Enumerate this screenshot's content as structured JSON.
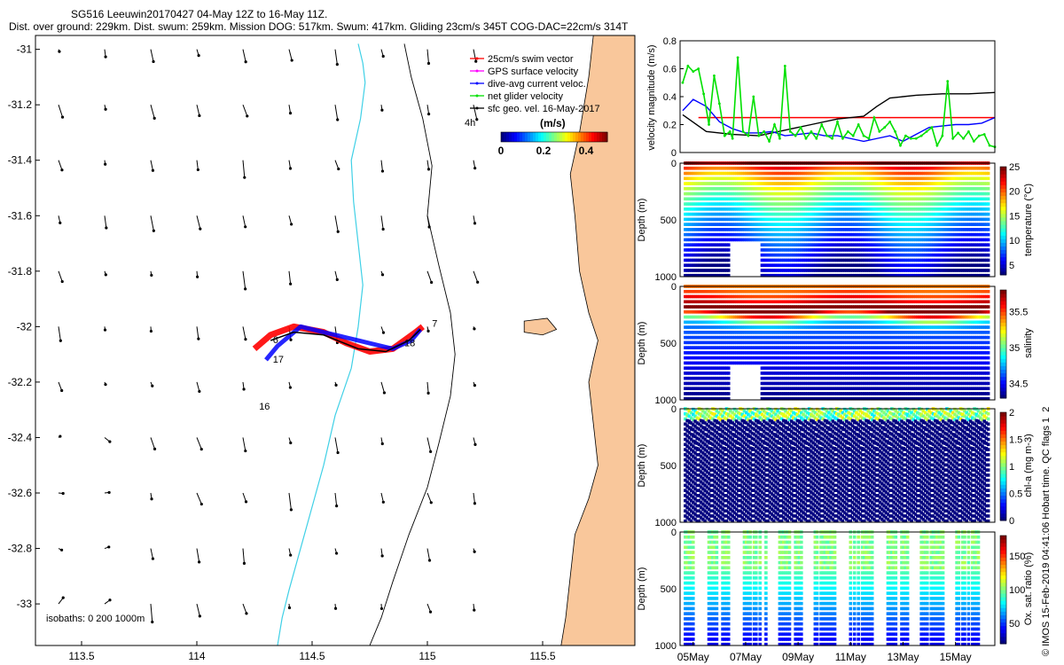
{
  "header": {
    "title_line1": "SG516 Leeuwin20170427 04-May 12Z to 16-May 11Z.",
    "title_line2": "Dist. over ground: 229km. Dist. swum: 259km. Mission DOG: 517km. Swum: 417km. Gliding 23cm/s 345T COG-DAC=22cm/s 314T"
  },
  "credit": "© IMOS 15-Feb-2019 04:41:06 Hobart time. QC flags 1  2",
  "colors": {
    "land": "#f9c79b",
    "isobath_200": "#3fd0e6",
    "isobath_1000": "#000000",
    "swim_vector": "#ff0000",
    "gps_velocity": "#ff00ff",
    "dive_avg": "#0000ff",
    "net_velocity": "#00e000",
    "sfc_geo": "#000000"
  },
  "chart_data": [
    {
      "type": "map",
      "xlim": [
        113.3,
        115.9
      ],
      "ylim": [
        -33.15,
        -30.95
      ],
      "xticks": [
        "113.5",
        "114",
        "114.5",
        "115",
        "115.5"
      ],
      "yticks": [
        "-31",
        "-31.2",
        "-31.4",
        "-31.6",
        "-31.8",
        "-32",
        "-32.2",
        "-32.4",
        "-32.6",
        "-32.8",
        "-33"
      ],
      "legend": [
        {
          "label": "25cm/s swim vector",
          "color": "#ff0000"
        },
        {
          "label": "GPS surface velocity",
          "color": "#ff00ff"
        },
        {
          "label": "dive-avg current veloc.",
          "color": "#0000ff"
        },
        {
          "label": "net glider velocity",
          "color": "#00e000"
        },
        {
          "label": "sfc geo. vel. 16-May-2017",
          "color": "#000000"
        }
      ],
      "legend_extra": "4h",
      "colorbar": {
        "label": "(m/s)",
        "ticks": [
          "0",
          "0.2",
          "0.4"
        ],
        "range": [
          0,
          0.5
        ]
      },
      "day_labels": [
        "6",
        "7",
        "16",
        "17",
        "18"
      ],
      "isobaths_text": "isobaths: 0   200  1000m",
      "isobath_200": [
        [
          114.7,
          -30.98
        ],
        [
          114.72,
          -31.05
        ],
        [
          114.73,
          -31.12
        ],
        [
          114.71,
          -31.25
        ],
        [
          114.67,
          -31.4
        ],
        [
          114.68,
          -31.55
        ],
        [
          114.7,
          -31.7
        ],
        [
          114.72,
          -31.85
        ],
        [
          114.7,
          -32.0
        ],
        [
          114.67,
          -32.15
        ],
        [
          114.6,
          -32.32
        ],
        [
          114.55,
          -32.5
        ],
        [
          114.5,
          -32.65
        ],
        [
          114.45,
          -32.8
        ],
        [
          114.4,
          -32.95
        ],
        [
          114.37,
          -33.05
        ],
        [
          114.35,
          -33.15
        ]
      ],
      "isobath_1000": [
        [
          114.9,
          -30.98
        ],
        [
          114.93,
          -31.1
        ],
        [
          114.98,
          -31.25
        ],
        [
          115.02,
          -31.42
        ],
        [
          115.0,
          -31.6
        ],
        [
          115.05,
          -31.78
        ],
        [
          115.1,
          -31.95
        ],
        [
          115.12,
          -32.1
        ],
        [
          115.1,
          -32.25
        ],
        [
          115.05,
          -32.42
        ],
        [
          115.0,
          -32.58
        ],
        [
          114.92,
          -32.75
        ],
        [
          114.85,
          -32.92
        ],
        [
          114.8,
          -33.05
        ],
        [
          114.75,
          -33.15
        ]
      ],
      "coast": [
        [
          115.72,
          -30.95
        ],
        [
          115.7,
          -31.1
        ],
        [
          115.66,
          -31.3
        ],
        [
          115.62,
          -31.45
        ],
        [
          115.64,
          -31.6
        ],
        [
          115.66,
          -31.8
        ],
        [
          115.7,
          -31.95
        ],
        [
          115.74,
          -32.05
        ],
        [
          115.72,
          -32.12
        ],
        [
          115.7,
          -32.2
        ],
        [
          115.72,
          -32.35
        ],
        [
          115.74,
          -32.5
        ],
        [
          115.7,
          -32.62
        ],
        [
          115.64,
          -32.75
        ],
        [
          115.62,
          -32.9
        ],
        [
          115.6,
          -33.05
        ],
        [
          115.58,
          -33.15
        ]
      ],
      "island": [
        [
          115.42,
          -31.98
        ],
        [
          115.52,
          -31.97
        ],
        [
          115.56,
          -32.01
        ],
        [
          115.5,
          -32.03
        ],
        [
          115.42,
          -32.02
        ]
      ],
      "track_red": [
        [
          114.25,
          -32.08
        ],
        [
          114.32,
          -32.03
        ],
        [
          114.42,
          -32.0
        ],
        [
          114.55,
          -32.02
        ],
        [
          114.65,
          -32.06
        ],
        [
          114.75,
          -32.09
        ],
        [
          114.85,
          -32.08
        ],
        [
          114.95,
          -32.02
        ],
        [
          114.98,
          -32.0
        ]
      ],
      "track_blue": [
        [
          114.3,
          -32.12
        ],
        [
          114.35,
          -32.07
        ],
        [
          114.45,
          -32.0
        ],
        [
          114.55,
          -32.02
        ],
        [
          114.65,
          -32.04
        ],
        [
          114.75,
          -32.06
        ],
        [
          114.85,
          -32.08
        ],
        [
          114.93,
          -32.05
        ],
        [
          114.97,
          -32.01
        ]
      ],
      "track_black": [
        [
          114.32,
          -32.05
        ],
        [
          114.42,
          -32.02
        ],
        [
          114.55,
          -32.03
        ],
        [
          114.7,
          -32.08
        ],
        [
          114.82,
          -32.09
        ],
        [
          114.92,
          -32.05
        ],
        [
          114.97,
          -32.01
        ]
      ]
    },
    {
      "type": "line",
      "ylabel": "velocity magnitude (m/s)",
      "ylim": [
        0,
        0.8
      ],
      "yticks": [
        "0",
        "0.2",
        "0.4",
        "0.6",
        "0.8"
      ],
      "x_range_days": [
        4.5,
        16.5
      ],
      "series": [
        {
          "name": "red",
          "color": "#ff0000",
          "x": [
            5.2,
            16.5
          ],
          "y": [
            0.25,
            0.25
          ]
        },
        {
          "name": "black",
          "color": "#000000",
          "x": [
            4.6,
            5.5,
            6.5,
            7.5,
            8.5,
            9.5,
            10.5,
            11.5,
            12.0,
            12.5,
            13.5,
            14.5,
            15.5,
            16.5
          ],
          "y": [
            0.27,
            0.15,
            0.13,
            0.12,
            0.16,
            0.2,
            0.24,
            0.26,
            0.33,
            0.39,
            0.41,
            0.42,
            0.42,
            0.43
          ]
        },
        {
          "name": "blue",
          "color": "#0000ff",
          "x": [
            4.6,
            5.0,
            5.5,
            6.0,
            6.5,
            7.0,
            7.5,
            8.0,
            8.5,
            9.0,
            9.5,
            10.0,
            10.5,
            11.0,
            11.5,
            12.0,
            12.5,
            13.0,
            13.5,
            14.0,
            14.5,
            15.0,
            15.5,
            16.0,
            16.5
          ],
          "y": [
            0.3,
            0.38,
            0.33,
            0.22,
            0.17,
            0.14,
            0.14,
            0.15,
            0.12,
            0.13,
            0.14,
            0.12,
            0.12,
            0.1,
            0.08,
            0.1,
            0.12,
            0.08,
            0.13,
            0.18,
            0.19,
            0.2,
            0.2,
            0.21,
            0.25
          ]
        },
        {
          "name": "green",
          "color": "#00e000",
          "x": [
            4.6,
            4.8,
            5.0,
            5.2,
            5.4,
            5.6,
            5.8,
            6.0,
            6.2,
            6.4,
            6.5,
            6.7,
            6.9,
            7.1,
            7.3,
            7.5,
            7.7,
            7.9,
            8.1,
            8.3,
            8.5,
            8.7,
            8.9,
            9.1,
            9.3,
            9.5,
            9.7,
            9.9,
            10.1,
            10.3,
            10.5,
            10.7,
            10.9,
            11.1,
            11.3,
            11.5,
            11.7,
            11.9,
            12.1,
            12.3,
            12.5,
            12.7,
            12.9,
            13.1,
            13.3,
            13.5,
            13.7,
            13.9,
            14.1,
            14.3,
            14.5,
            14.7,
            14.9,
            15.1,
            15.3,
            15.5,
            15.7,
            15.9,
            16.1,
            16.3,
            16.5
          ],
          "y": [
            0.5,
            0.62,
            0.58,
            0.6,
            0.42,
            0.2,
            0.55,
            0.35,
            0.12,
            0.15,
            0.1,
            0.68,
            0.15,
            0.12,
            0.4,
            0.12,
            0.15,
            0.08,
            0.2,
            0.1,
            0.62,
            0.15,
            0.12,
            0.18,
            0.1,
            0.15,
            0.1,
            0.2,
            0.12,
            0.1,
            0.22,
            0.1,
            0.15,
            0.12,
            0.2,
            0.12,
            0.1,
            0.25,
            0.15,
            0.18,
            0.22,
            0.15,
            0.05,
            0.12,
            0.1,
            0.1,
            0.12,
            0.15,
            0.18,
            0.05,
            0.12,
            0.51,
            0.1,
            0.14,
            0.1,
            0.15,
            0.08,
            0.12,
            0.13,
            0.05,
            0.04
          ]
        }
      ]
    },
    {
      "type": "heatmap",
      "ylabel": "Depth (m)",
      "yticks": [
        "0",
        "500",
        "1000"
      ],
      "cbar_label": "temperature (°C)",
      "cbar_ticks": [
        "25",
        "20",
        "15",
        "10",
        "5"
      ],
      "cbar_range": [
        3,
        25
      ]
    },
    {
      "type": "heatmap",
      "ylabel": "Depth (m)",
      "yticks": [
        "0",
        "500",
        "1000"
      ],
      "cbar_label": "salinity",
      "cbar_ticks": [
        "35.5",
        "35",
        "34.5"
      ],
      "cbar_range": [
        34.3,
        35.8
      ]
    },
    {
      "type": "heatmap",
      "ylabel": "Depth (m)",
      "yticks": [
        "0",
        "500",
        "1000"
      ],
      "cbar_label": "chl-a (mg m-3)",
      "cbar_ticks": [
        "2",
        "1.5",
        "1",
        "0.5",
        "0"
      ],
      "cbar_range": [
        0,
        2
      ]
    },
    {
      "type": "heatmap",
      "ylabel": "Depth (m)",
      "yticks": [
        "0",
        "500",
        "1000"
      ],
      "cbar_label": "Ox. sat. ratio (%)",
      "cbar_ticks": [
        "150",
        "100",
        "50"
      ],
      "cbar_range": [
        20,
        180
      ]
    }
  ],
  "x_date_labels": [
    "05May",
    "07May",
    "09May",
    "11May",
    "13May",
    "15May"
  ]
}
